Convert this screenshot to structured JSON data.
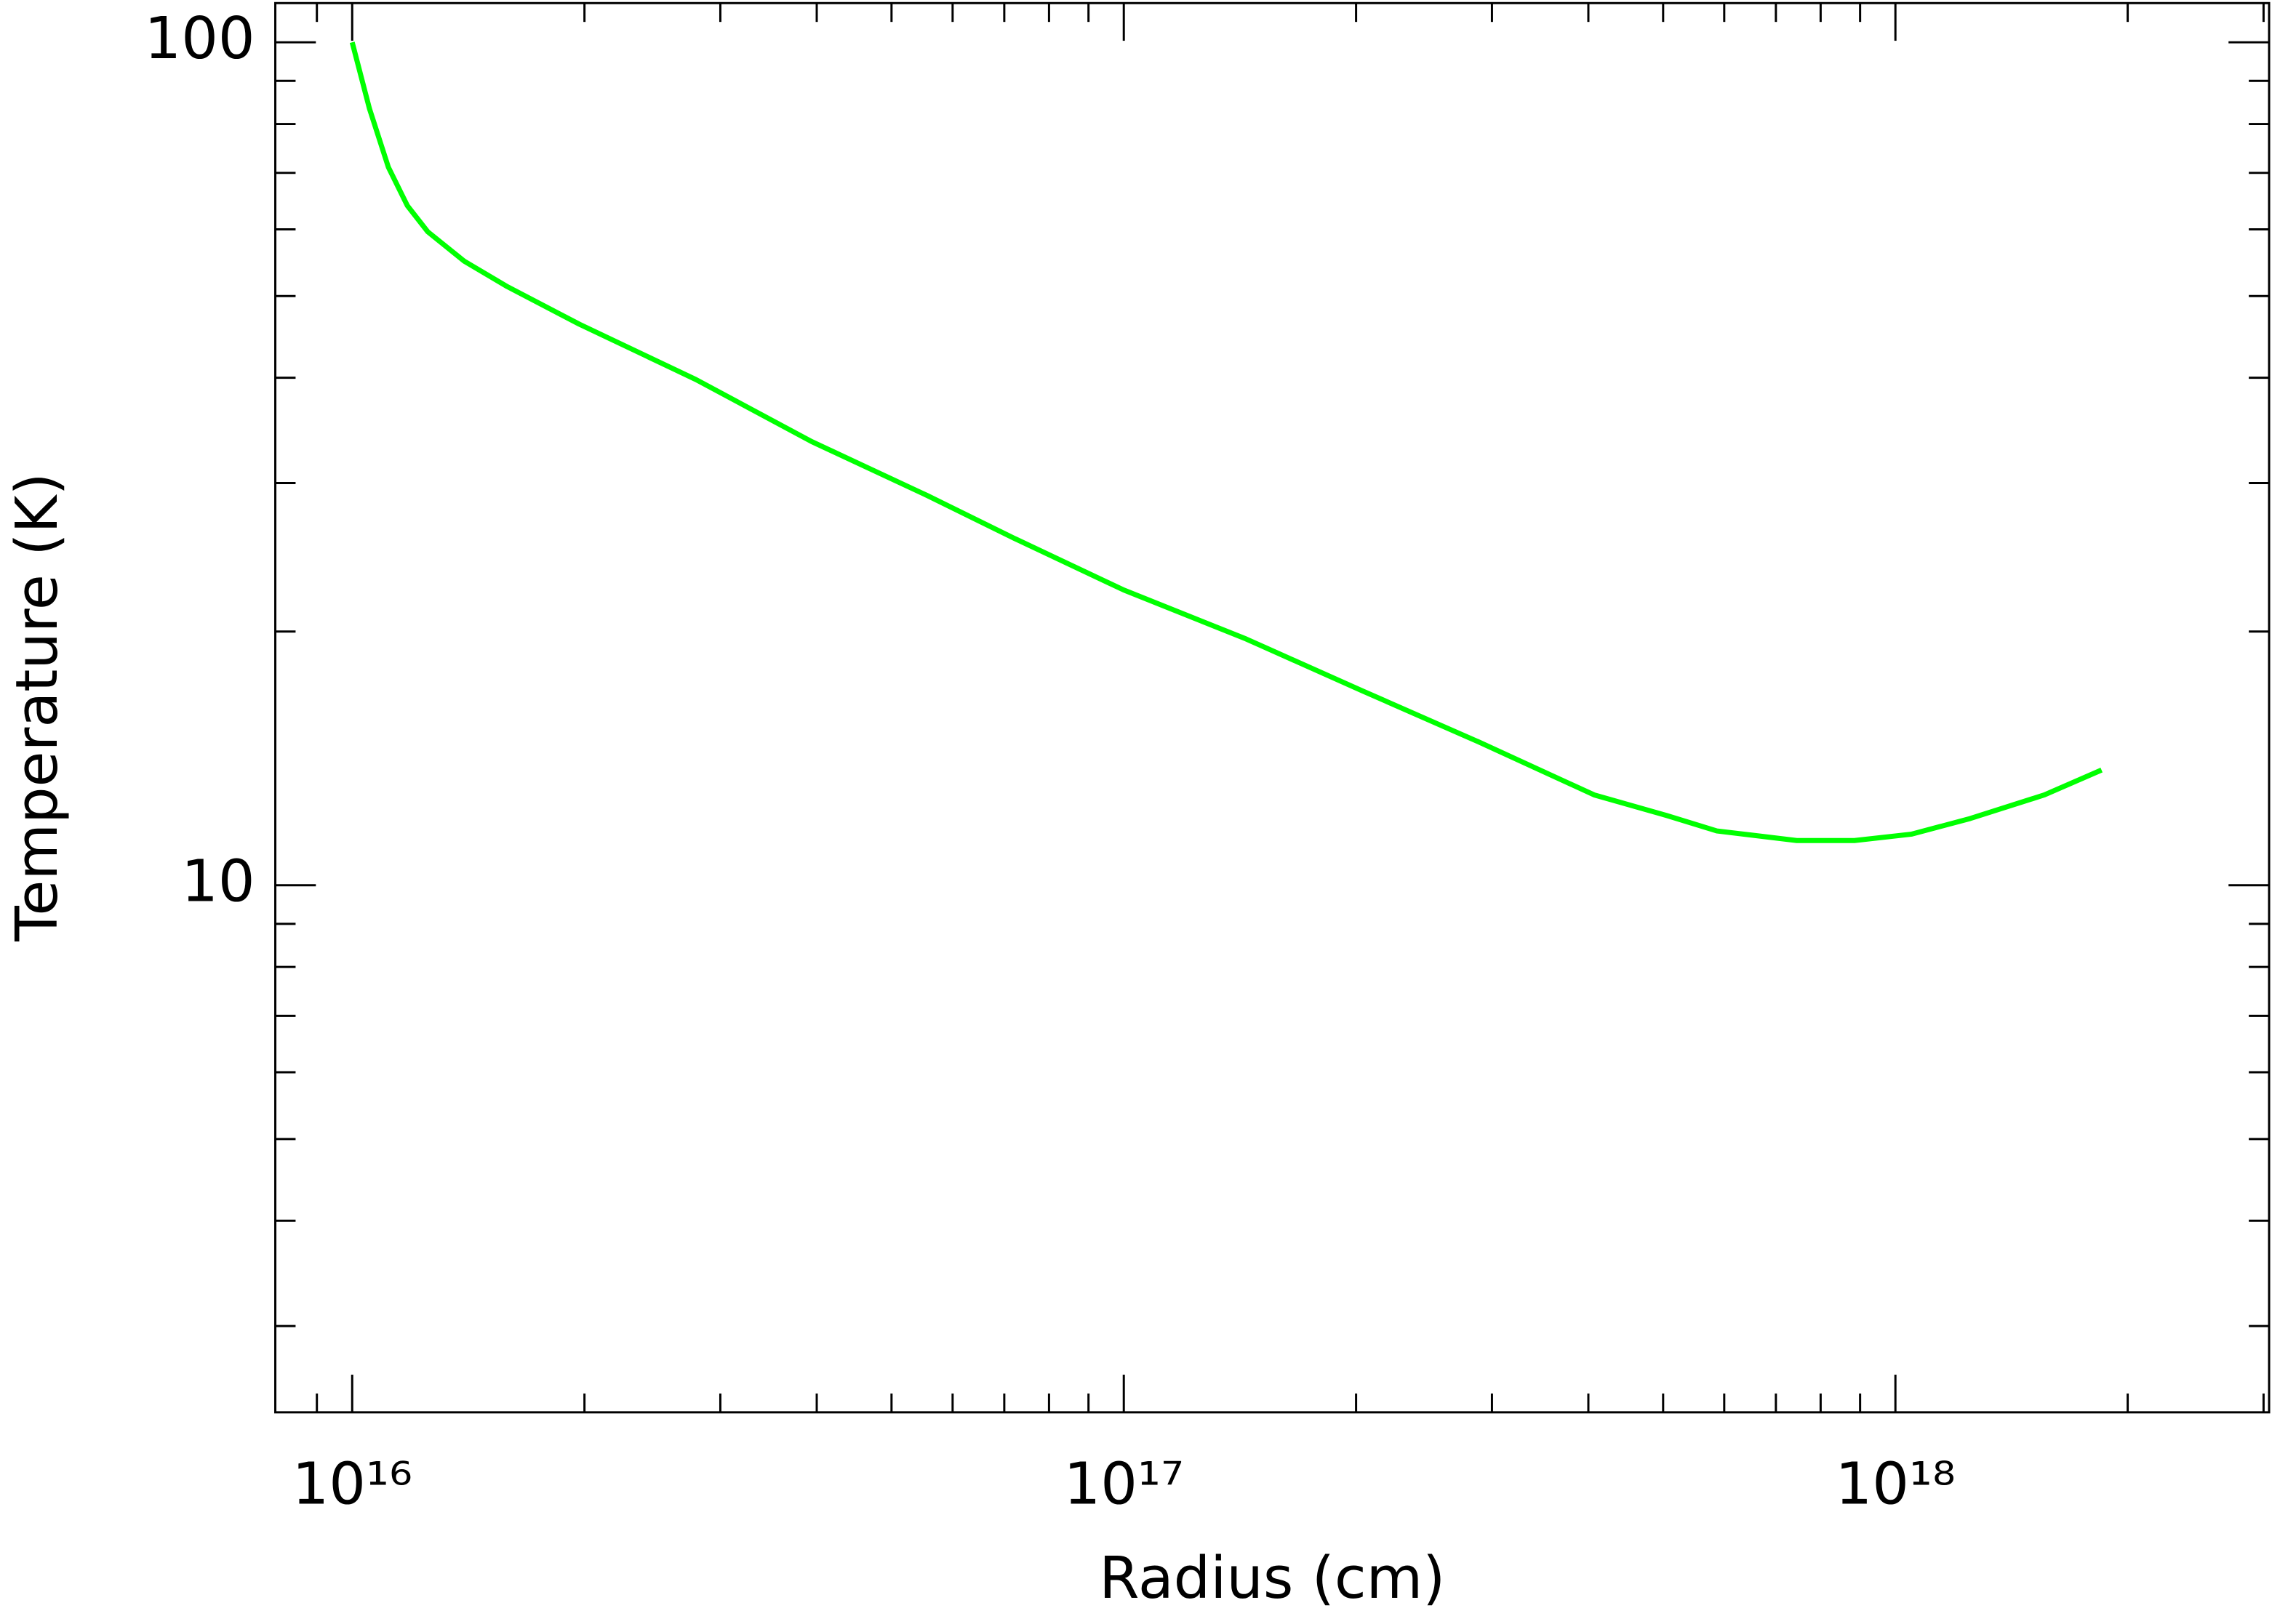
{
  "chart_data": {
    "type": "line",
    "xlabel": "Radius (cm)",
    "ylabel": "Temperature (K)",
    "xscale": "log",
    "yscale": "log",
    "xlim": [
      7950000000000000.0,
      3.05e+18
    ],
    "ylim": [
      2.37,
      111.3
    ],
    "xticks": [
      {
        "value": 1e+16,
        "label": "10¹⁶"
      },
      {
        "value": 1e+17,
        "label": "10¹⁷"
      },
      {
        "value": 1e+18,
        "label": "10¹⁸"
      }
    ],
    "xminorticks": [
      9000000000000000.0,
      2e+16,
      3e+16,
      4e+16,
      5e+16,
      6e+16,
      7e+16,
      8e+16,
      9e+16,
      2e+17,
      3e+17,
      4e+17,
      5e+17,
      6e+17,
      7e+17,
      8e+17,
      9e+17,
      2e+18,
      3e+18
    ],
    "yticks": [
      10,
      100
    ],
    "yminorticks": [
      3,
      4,
      5,
      6,
      7,
      8,
      9,
      20,
      30,
      40,
      50,
      60,
      70,
      80,
      90
    ],
    "series": [
      {
        "color": "#00ff00",
        "x": [
          1e+16,
          1.053e+16,
          1.114e+16,
          1.179e+16,
          1.253e+16,
          1.397e+16,
          1.589e+16,
          1.97e+16,
          2.79e+16,
          3.94e+16,
          5.56e+16,
          7.21e+16,
          1e+17,
          1.44e+17,
          2.04e+17,
          2.88e+17,
          4.07e+17,
          5.05e+17,
          5.87e+17,
          7.45e+17,
          8.85e+17,
          1.05e+18,
          1.25e+18,
          1.56e+18,
          1.85e+18
        ],
        "values": [
          100,
          83.4,
          71.1,
          64.0,
          59.6,
          55.0,
          51.3,
          46.3,
          39.8,
          33.6,
          29.0,
          25.8,
          22.4,
          19.6,
          17.0,
          14.8,
          12.8,
          12.1,
          11.6,
          11.3,
          11.3,
          11.5,
          12.0,
          12.8,
          13.7
        ]
      }
    ]
  }
}
